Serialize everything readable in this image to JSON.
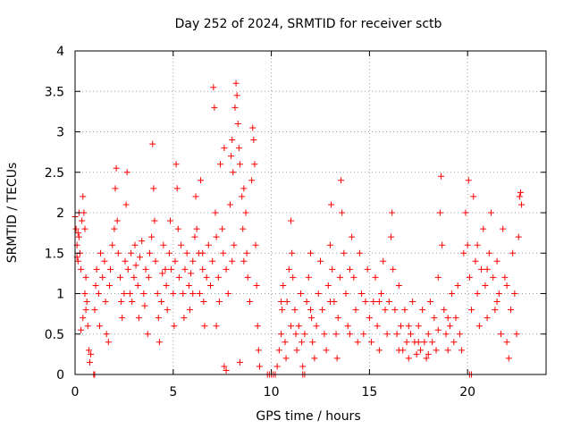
{
  "chart_data": {
    "type": "scatter",
    "title": "Day 252 of 2024, SRMTID for receiver sctb",
    "xlabel": "GPS time / hours",
    "ylabel": "SRMTID / TECUs",
    "xlim": [
      0,
      24
    ],
    "ylim": [
      0,
      4
    ],
    "x_ticks": [
      0,
      5,
      10,
      15,
      20
    ],
    "x_tick_labels": [
      "0",
      "5",
      "10",
      "15",
      "20"
    ],
    "y_ticks": [
      0,
      0.5,
      1,
      1.5,
      2,
      2.5,
      3,
      3.5,
      4
    ],
    "y_tick_labels": [
      "0",
      "0.5",
      "1",
      "1.5",
      "2",
      "2.5",
      "3",
      "3.5",
      "4"
    ],
    "grid": true,
    "marker": "+",
    "marker_color": "#ff0000",
    "series": [
      {
        "name": "SRMTID",
        "points": [
          [
            0.0,
            1.95
          ],
          [
            0.05,
            1.8
          ],
          [
            0.1,
            1.6
          ],
          [
            0.15,
            1.4
          ],
          [
            0.2,
            1.7
          ],
          [
            0.25,
            1.5
          ],
          [
            0.3,
            1.3
          ],
          [
            0.35,
            1.9
          ],
          [
            0.4,
            2.2
          ],
          [
            0.45,
            2.0
          ],
          [
            0.5,
            1.8
          ],
          [
            0.55,
            1.2
          ],
          [
            0.6,
            0.9
          ],
          [
            0.65,
            0.6
          ],
          [
            0.7,
            0.3
          ],
          [
            0.75,
            0.15
          ],
          [
            0.8,
            0.25
          ],
          [
            0.3,
            0.55
          ],
          [
            0.4,
            0.7
          ],
          [
            0.5,
            1.0
          ],
          [
            0.2,
            2.0
          ],
          [
            0.1,
            1.45
          ],
          [
            0.15,
            1.75
          ],
          [
            0.55,
            0.8
          ],
          [
            1.0,
            0.8
          ],
          [
            1.05,
            1.1
          ],
          [
            1.1,
            1.3
          ],
          [
            1.2,
            1.0
          ],
          [
            1.25,
            0.6
          ],
          [
            1.3,
            1.5
          ],
          [
            1.4,
            1.2
          ],
          [
            1.5,
            1.4
          ],
          [
            1.55,
            0.9
          ],
          [
            1.6,
            0.5
          ],
          [
            1.7,
            0.4
          ],
          [
            1.75,
            1.1
          ],
          [
            1.8,
            1.3
          ],
          [
            1.9,
            1.6
          ],
          [
            2.0,
            1.8
          ],
          [
            2.05,
            2.3
          ],
          [
            2.1,
            2.55
          ],
          [
            2.15,
            1.9
          ],
          [
            2.2,
            1.5
          ],
          [
            2.3,
            1.2
          ],
          [
            2.35,
            0.9
          ],
          [
            2.4,
            0.7
          ],
          [
            2.5,
            1.0
          ],
          [
            2.55,
            1.4
          ],
          [
            2.6,
            2.1
          ],
          [
            2.65,
            2.5
          ],
          [
            2.7,
            1.3
          ],
          [
            2.8,
            1.0
          ],
          [
            2.85,
            1.5
          ],
          [
            2.9,
            0.9
          ],
          [
            3.0,
            1.2
          ],
          [
            3.05,
            1.6
          ],
          [
            3.1,
            1.35
          ],
          [
            3.2,
            1.1
          ],
          [
            3.25,
            0.7
          ],
          [
            3.3,
            1.45
          ],
          [
            3.4,
            1.65
          ],
          [
            3.5,
            1.0
          ],
          [
            3.55,
            0.85
          ],
          [
            3.6,
            1.3
          ],
          [
            3.7,
            0.5
          ],
          [
            3.75,
            1.2
          ],
          [
            3.8,
            1.5
          ],
          [
            3.9,
            1.7
          ],
          [
            3.95,
            2.85
          ],
          [
            4.0,
            2.3
          ],
          [
            4.05,
            1.9
          ],
          [
            4.1,
            1.4
          ],
          [
            4.2,
            1.0
          ],
          [
            4.25,
            0.7
          ],
          [
            4.3,
            0.4
          ],
          [
            4.4,
            0.9
          ],
          [
            4.45,
            1.25
          ],
          [
            4.5,
            1.6
          ],
          [
            4.6,
            1.3
          ],
          [
            4.65,
            1.1
          ],
          [
            4.7,
            0.8
          ],
          [
            4.8,
            1.5
          ],
          [
            4.85,
            1.9
          ],
          [
            4.9,
            1.3
          ],
          [
            5.0,
            1.0
          ],
          [
            5.05,
            0.6
          ],
          [
            5.1,
            1.4
          ],
          [
            5.15,
            2.6
          ],
          [
            5.2,
            2.3
          ],
          [
            5.25,
            1.8
          ],
          [
            5.3,
            1.2
          ],
          [
            5.4,
            1.6
          ],
          [
            5.5,
            1.0
          ],
          [
            5.55,
            0.7
          ],
          [
            5.6,
            1.3
          ],
          [
            5.7,
            1.5
          ],
          [
            5.8,
            1.1
          ],
          [
            5.85,
            0.8
          ],
          [
            5.9,
            1.25
          ],
          [
            6.0,
            1.4
          ],
          [
            6.1,
            1.7
          ],
          [
            6.15,
            2.2
          ],
          [
            6.2,
            1.8
          ],
          [
            6.3,
            1.5
          ],
          [
            6.35,
            1.0
          ],
          [
            6.4,
            2.4
          ],
          [
            6.5,
            1.3
          ],
          [
            6.55,
            0.9
          ],
          [
            6.6,
            0.6
          ],
          [
            6.7,
            1.2
          ],
          [
            6.8,
            1.6
          ],
          [
            6.9,
            1.1
          ],
          [
            7.0,
            1.4
          ],
          [
            7.05,
            3.55
          ],
          [
            7.1,
            3.3
          ],
          [
            7.15,
            2.0
          ],
          [
            7.2,
            1.7
          ],
          [
            7.3,
            1.2
          ],
          [
            7.35,
            0.9
          ],
          [
            7.4,
            2.6
          ],
          [
            7.5,
            1.8
          ],
          [
            7.55,
            1.5
          ],
          [
            7.6,
            2.8
          ],
          [
            7.7,
            1.3
          ],
          [
            7.8,
            1.0
          ],
          [
            7.9,
            2.1
          ],
          [
            7.95,
            2.7
          ],
          [
            8.0,
            2.9
          ],
          [
            8.05,
            2.5
          ],
          [
            8.1,
            1.6
          ],
          [
            8.15,
            3.3
          ],
          [
            8.2,
            3.6
          ],
          [
            8.25,
            3.45
          ],
          [
            8.3,
            3.1
          ],
          [
            8.35,
            2.8
          ],
          [
            8.4,
            2.6
          ],
          [
            8.5,
            2.2
          ],
          [
            8.55,
            1.8
          ],
          [
            8.6,
            1.4
          ],
          [
            8.7,
            2.0
          ],
          [
            8.75,
            1.5
          ],
          [
            8.8,
            1.2
          ],
          [
            8.9,
            0.9
          ],
          [
            9.0,
            2.4
          ],
          [
            9.05,
            3.05
          ],
          [
            9.1,
            2.9
          ],
          [
            9.15,
            2.6
          ],
          [
            9.2,
            1.6
          ],
          [
            9.25,
            1.1
          ],
          [
            9.3,
            0.6
          ],
          [
            9.35,
            0.3
          ],
          [
            9.4,
            0.1
          ],
          [
            7.6,
            0.1
          ],
          [
            7.7,
            0.05
          ],
          [
            8.4,
            0.15
          ],
          [
            6.0,
            1.0
          ],
          [
            6.5,
            1.5
          ],
          [
            7.2,
            0.6
          ],
          [
            8.0,
            1.4
          ],
          [
            8.6,
            2.3
          ],
          [
            9.8,
            0.0
          ],
          [
            9.9,
            0.0
          ],
          [
            10.0,
            0.0
          ],
          [
            10.1,
            0.0
          ],
          [
            10.2,
            0.0
          ],
          [
            10.3,
            0.1
          ],
          [
            10.4,
            0.3
          ],
          [
            10.5,
            0.5
          ],
          [
            10.55,
            0.8
          ],
          [
            10.6,
            1.1
          ],
          [
            10.7,
            0.4
          ],
          [
            10.75,
            0.2
          ],
          [
            10.8,
            0.9
          ],
          [
            10.9,
            1.3
          ],
          [
            11.0,
            1.9
          ],
          [
            11.05,
            1.5
          ],
          [
            11.1,
            1.2
          ],
          [
            11.2,
            0.8
          ],
          [
            11.25,
            0.5
          ],
          [
            11.3,
            0.3
          ],
          [
            11.4,
            0.6
          ],
          [
            11.5,
            1.0
          ],
          [
            11.55,
            0.4
          ],
          [
            11.6,
            0.1
          ],
          [
            11.7,
            0.5
          ],
          [
            11.8,
            0.9
          ],
          [
            11.9,
            1.2
          ],
          [
            12.0,
            1.5
          ],
          [
            12.05,
            0.7
          ],
          [
            12.1,
            0.4
          ],
          [
            12.2,
            0.2
          ],
          [
            12.3,
            0.6
          ],
          [
            12.4,
            1.0
          ],
          [
            12.5,
            1.4
          ],
          [
            12.6,
            0.8
          ],
          [
            12.7,
            0.5
          ],
          [
            12.8,
            0.3
          ],
          [
            12.9,
            1.1
          ],
          [
            13.0,
            1.6
          ],
          [
            13.05,
            2.1
          ],
          [
            13.1,
            1.3
          ],
          [
            13.2,
            0.9
          ],
          [
            13.3,
            0.5
          ],
          [
            13.35,
            0.2
          ],
          [
            13.4,
            0.7
          ],
          [
            13.5,
            1.2
          ],
          [
            13.55,
            2.4
          ],
          [
            13.6,
            2.0
          ],
          [
            13.7,
            1.5
          ],
          [
            13.8,
            1.0
          ],
          [
            13.9,
            0.6
          ],
          [
            14.0,
            1.3
          ],
          [
            14.1,
            1.7
          ],
          [
            14.2,
            1.2
          ],
          [
            14.3,
            0.8
          ],
          [
            14.4,
            0.4
          ],
          [
            14.5,
            1.5
          ],
          [
            14.6,
            1.0
          ],
          [
            14.7,
            0.5
          ],
          [
            14.8,
            0.9
          ],
          [
            14.9,
            1.3
          ],
          [
            15.0,
            0.7
          ],
          [
            15.1,
            0.4
          ],
          [
            15.2,
            0.9
          ],
          [
            15.3,
            1.2
          ],
          [
            15.4,
            0.6
          ],
          [
            15.5,
            0.3
          ],
          [
            15.6,
            1.0
          ],
          [
            15.7,
            1.4
          ],
          [
            15.8,
            0.8
          ],
          [
            15.9,
            0.5
          ],
          [
            16.0,
            0.9
          ],
          [
            16.1,
            1.7
          ],
          [
            16.15,
            2.0
          ],
          [
            16.2,
            1.3
          ],
          [
            16.3,
            0.8
          ],
          [
            16.4,
            0.5
          ],
          [
            16.5,
            1.1
          ],
          [
            16.6,
            0.6
          ],
          [
            16.7,
            0.3
          ],
          [
            16.8,
            0.8
          ],
          [
            16.9,
            0.4
          ],
          [
            17.0,
            0.2
          ],
          [
            17.1,
            0.5
          ],
          [
            17.2,
            0.9
          ],
          [
            17.3,
            0.4
          ],
          [
            17.4,
            0.25
          ],
          [
            17.5,
            0.6
          ],
          [
            17.6,
            0.3
          ],
          [
            17.7,
            0.8
          ],
          [
            17.8,
            0.4
          ],
          [
            17.9,
            0.2
          ],
          [
            18.0,
            0.5
          ],
          [
            18.1,
            0.9
          ],
          [
            18.2,
            0.4
          ],
          [
            18.3,
            0.7
          ],
          [
            18.4,
            0.3
          ],
          [
            18.5,
            1.2
          ],
          [
            18.6,
            2.0
          ],
          [
            18.65,
            2.45
          ],
          [
            18.7,
            1.6
          ],
          [
            18.8,
            0.8
          ],
          [
            18.9,
            0.5
          ],
          [
            19.0,
            0.3
          ],
          [
            19.1,
            0.6
          ],
          [
            19.2,
            1.0
          ],
          [
            19.3,
            0.4
          ],
          [
            19.4,
            0.7
          ],
          [
            19.5,
            1.1
          ],
          [
            19.6,
            0.5
          ],
          [
            19.7,
            0.3
          ],
          [
            19.8,
            1.5
          ],
          [
            19.9,
            2.0
          ],
          [
            20.0,
            1.6
          ],
          [
            20.05,
            2.4
          ],
          [
            20.1,
            1.2
          ],
          [
            20.2,
            0.8
          ],
          [
            20.3,
            2.2
          ],
          [
            20.4,
            1.4
          ],
          [
            20.5,
            1.0
          ],
          [
            20.6,
            0.6
          ],
          [
            20.7,
            1.3
          ],
          [
            20.8,
            1.8
          ],
          [
            20.9,
            1.1
          ],
          [
            21.0,
            0.7
          ],
          [
            21.1,
            1.5
          ],
          [
            21.2,
            2.0
          ],
          [
            21.3,
            1.2
          ],
          [
            21.4,
            0.8
          ],
          [
            21.5,
            1.4
          ],
          [
            21.6,
            1.0
          ],
          [
            21.7,
            0.5
          ],
          [
            21.8,
            1.8
          ],
          [
            21.9,
            1.2
          ],
          [
            22.0,
            0.4
          ],
          [
            22.1,
            0.2
          ],
          [
            22.2,
            0.8
          ],
          [
            22.3,
            1.5
          ],
          [
            22.4,
            1.0
          ],
          [
            22.5,
            0.5
          ],
          [
            22.6,
            1.7
          ],
          [
            22.65,
            2.2
          ],
          [
            22.7,
            2.25
          ],
          [
            22.75,
            2.1
          ],
          [
            0.95,
            0.0
          ],
          [
            1.0,
            0.0
          ],
          [
            11.6,
            0.0
          ],
          [
            11.7,
            0.0
          ],
          [
            20.1,
            0.0
          ],
          [
            20.2,
            0.0
          ],
          [
            16.5,
            0.3
          ],
          [
            17.0,
            0.6
          ],
          [
            17.5,
            0.4
          ],
          [
            18.0,
            0.25
          ],
          [
            18.5,
            0.55
          ],
          [
            19.0,
            0.7
          ],
          [
            15.5,
            0.9
          ],
          [
            14.0,
            0.5
          ],
          [
            13.0,
            0.9
          ],
          [
            12.0,
            0.8
          ],
          [
            11.0,
            0.6
          ],
          [
            10.5,
            0.9
          ],
          [
            21.0,
            1.3
          ],
          [
            21.5,
            0.9
          ],
          [
            22.0,
            1.1
          ],
          [
            20.5,
            1.6
          ]
        ]
      }
    ]
  }
}
